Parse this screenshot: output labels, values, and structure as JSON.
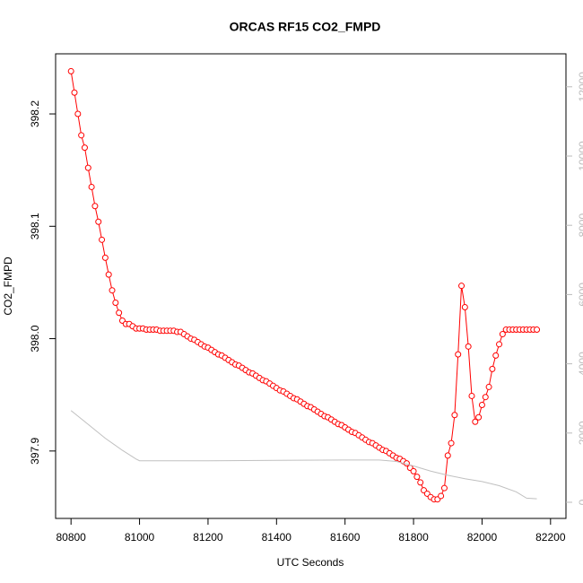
{
  "chart_data": {
    "type": "line",
    "title": "ORCAS RF15 CO2_FMPD",
    "xlabel": "UTC Seconds",
    "ylabel": "CO2_FMPD",
    "xlim": [
      80755,
      82245
    ],
    "xticks": [
      80800,
      81000,
      81200,
      81400,
      81600,
      81800,
      82000,
      82200
    ],
    "ylim": [
      397.84,
      398.2535
    ],
    "yticks": [
      397.9,
      {
        "value": 398,
        "label": "398.0"
      },
      398.1,
      398.2
    ],
    "y2lim": [
      -466,
      12953
    ],
    "y2ticks": [
      0,
      2000,
      4000,
      6000,
      8000,
      10000,
      12000
    ],
    "series": [
      {
        "color": "#ff0000",
        "marker": "circle",
        "x": [
          80800,
          80810,
          80820,
          80830,
          80840,
          80850,
          80860,
          80870,
          80880,
          80890,
          80900,
          80910,
          80920,
          80930,
          80940,
          80950,
          80960,
          80970,
          80980,
          80990,
          81000,
          81010,
          81020,
          81030,
          81040,
          81050,
          81060,
          81070,
          81080,
          81090,
          81100,
          81110,
          81120,
          81130,
          81140,
          81150,
          81160,
          81170,
          81180,
          81190,
          81200,
          81210,
          81220,
          81230,
          81240,
          81250,
          81260,
          81270,
          81280,
          81290,
          81300,
          81310,
          81320,
          81330,
          81340,
          81350,
          81360,
          81370,
          81380,
          81390,
          81400,
          81410,
          81420,
          81430,
          81440,
          81450,
          81460,
          81470,
          81480,
          81490,
          81500,
          81510,
          81520,
          81530,
          81540,
          81550,
          81560,
          81570,
          81580,
          81590,
          81600,
          81610,
          81620,
          81630,
          81640,
          81650,
          81660,
          81670,
          81680,
          81690,
          81700,
          81710,
          81720,
          81730,
          81740,
          81750,
          81760,
          81770,
          81780,
          81790,
          81800,
          81810,
          81820,
          81830,
          81840,
          81850,
          81860,
          81870,
          81880,
          81890,
          81900,
          81910,
          81920,
          81930,
          81940,
          81950,
          81960,
          81970,
          81980,
          81990,
          82000,
          82010,
          82020,
          82030,
          82040,
          82050,
          82060,
          82070,
          82080,
          82090,
          82100,
          82110,
          82120,
          82130,
          82140,
          82150,
          82160
        ],
        "values": [
          398.238,
          398.219,
          398.2,
          398.181,
          398.17,
          398.152,
          398.135,
          398.118,
          398.104,
          398.088,
          398.072,
          398.057,
          398.043,
          398.032,
          398.023,
          398.016,
          398.013,
          398.013,
          398.011,
          398.009,
          398.009,
          398.009,
          398.008,
          398.008,
          398.008,
          398.008,
          398.007,
          398.007,
          398.007,
          398.007,
          398.007,
          398.006,
          398.006,
          398.004,
          398.002,
          398.0,
          397.999,
          397.997,
          397.995,
          397.993,
          397.992,
          397.99,
          397.988,
          397.986,
          397.985,
          397.983,
          397.981,
          397.979,
          397.977,
          397.976,
          397.974,
          397.972,
          397.97,
          397.969,
          397.967,
          397.965,
          397.963,
          397.962,
          397.96,
          397.958,
          397.956,
          397.954,
          397.953,
          397.951,
          397.949,
          397.947,
          397.946,
          397.944,
          397.942,
          397.94,
          397.939,
          397.937,
          397.935,
          397.933,
          397.931,
          397.93,
          397.928,
          397.926,
          397.924,
          397.923,
          397.921,
          397.919,
          397.917,
          397.916,
          397.914,
          397.912,
          397.91,
          397.908,
          397.907,
          397.905,
          397.903,
          397.901,
          397.9,
          397.898,
          397.896,
          397.894,
          397.893,
          397.891,
          397.889,
          397.885,
          397.882,
          397.877,
          397.872,
          397.865,
          397.862,
          397.859,
          397.857,
          397.857,
          397.86,
          397.867,
          397.896,
          397.907,
          397.932,
          397.986,
          398.047,
          398.028,
          397.993,
          397.949,
          397.926,
          397.93,
          397.941,
          397.948,
          397.957,
          397.973,
          397.985,
          397.995,
          398.004,
          398.008,
          398.008,
          398.008,
          398.008,
          398.008,
          398.008,
          398.008,
          398.008,
          398.008,
          398.008
        ]
      },
      {
        "color": "#c0c0c0",
        "axis": "y2",
        "x": [
          80800,
          80850,
          80900,
          80950,
          80990,
          81000,
          81200,
          81400,
          81600,
          81700,
          81750,
          81800,
          81850,
          81900,
          81950,
          82000,
          82050,
          82100,
          82130,
          82160
        ],
        "values": [
          2650,
          2250,
          1850,
          1500,
          1250,
          1200,
          1200,
          1210,
          1220,
          1220,
          1180,
          1050,
          900,
          780,
          680,
          600,
          480,
          300,
          120,
          100
        ]
      }
    ]
  }
}
